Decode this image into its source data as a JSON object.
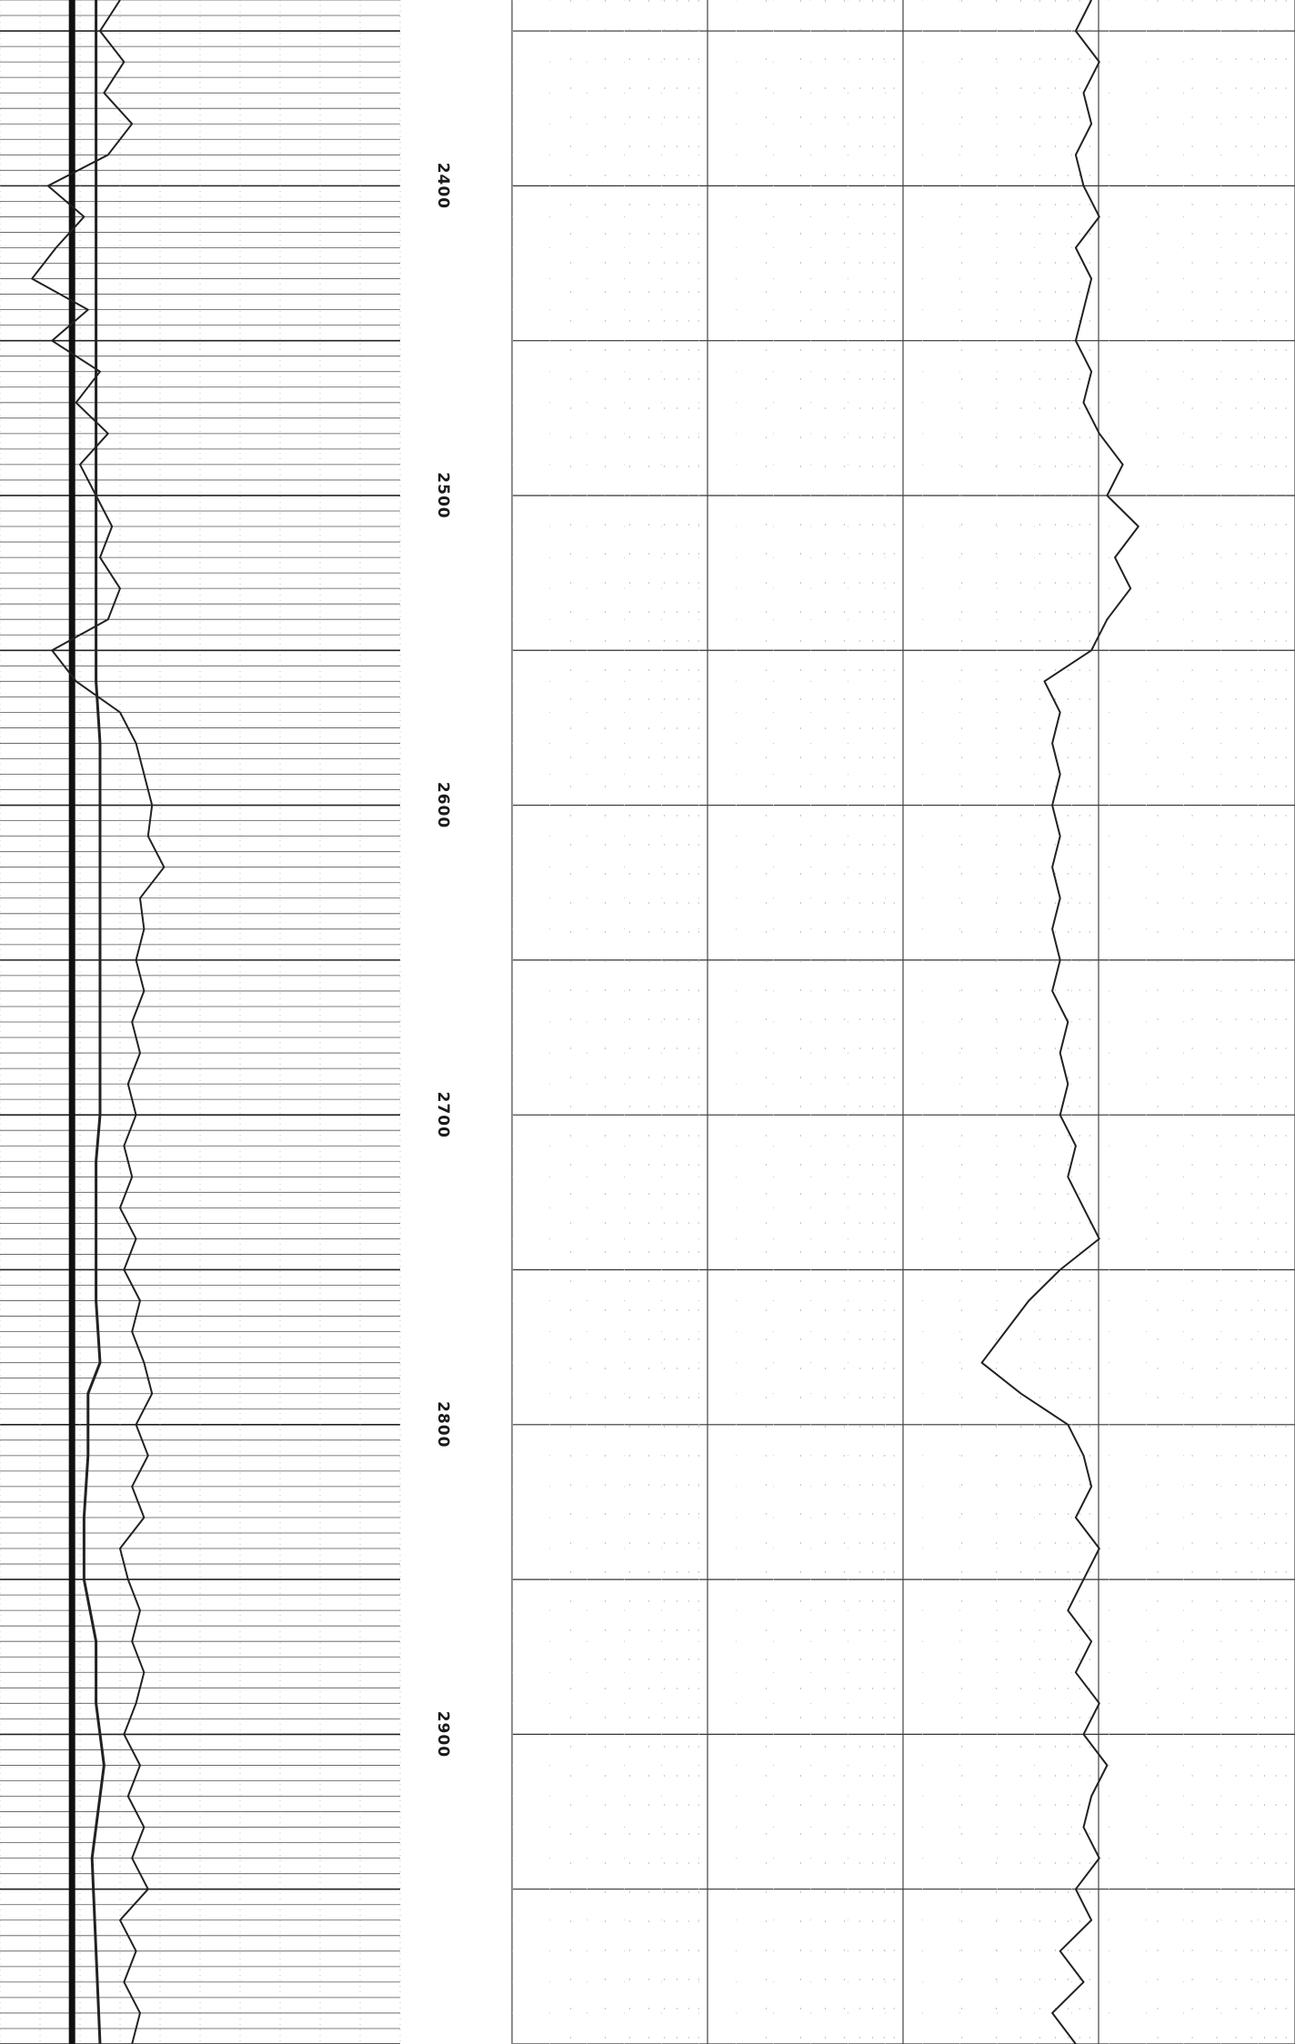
{
  "chart_data": {
    "type": "line",
    "orientation": "rotated",
    "title": "",
    "depth_axis": {
      "label": "",
      "range": [
        2340,
        3000
      ],
      "major_tick_step": 50,
      "labels": [
        "2400",
        "2500",
        "2600",
        "2700",
        "2800",
        "2900"
      ],
      "label_values": [
        2400,
        2500,
        2600,
        2700,
        2800,
        2900
      ]
    },
    "tracks": [
      {
        "name": "",
        "grid": "linear",
        "curves": [
          {
            "name": "",
            "style": "thick",
            "points": [
              [
                2340,
                0.18
              ],
              [
                2360,
                0.18
              ],
              [
                2380,
                0.18
              ],
              [
                2400,
                0.18
              ],
              [
                2420,
                0.18
              ],
              [
                2440,
                0.18
              ],
              [
                2460,
                0.18
              ],
              [
                2480,
                0.18
              ],
              [
                2500,
                0.18
              ],
              [
                2520,
                0.18
              ],
              [
                2540,
                0.18
              ],
              [
                2560,
                0.18
              ],
              [
                2580,
                0.18
              ],
              [
                2600,
                0.18
              ],
              [
                2650,
                0.18
              ],
              [
                2700,
                0.18
              ],
              [
                2750,
                0.18
              ],
              [
                2800,
                0.18
              ],
              [
                2850,
                0.18
              ],
              [
                2900,
                0.18
              ],
              [
                2950,
                0.18
              ],
              [
                3000,
                0.18
              ]
            ]
          },
          {
            "name": "",
            "style": "medium",
            "points": [
              [
                2340,
                0.24
              ],
              [
                2380,
                0.24
              ],
              [
                2420,
                0.24
              ],
              [
                2460,
                0.24
              ],
              [
                2500,
                0.24
              ],
              [
                2540,
                0.24
              ],
              [
                2560,
                0.24
              ],
              [
                2580,
                0.25
              ],
              [
                2620,
                0.25
              ],
              [
                2660,
                0.25
              ],
              [
                2700,
                0.25
              ],
              [
                2715,
                0.24
              ],
              [
                2740,
                0.24
              ],
              [
                2760,
                0.24
              ],
              [
                2780,
                0.25
              ],
              [
                2790,
                0.22
              ],
              [
                2810,
                0.22
              ],
              [
                2830,
                0.21
              ],
              [
                2850,
                0.21
              ],
              [
                2870,
                0.24
              ],
              [
                2890,
                0.24
              ],
              [
                2910,
                0.26
              ],
              [
                2940,
                0.23
              ],
              [
                2970,
                0.24
              ],
              [
                3000,
                0.25
              ]
            ]
          },
          {
            "name": "",
            "style": "thin",
            "points": [
              [
                2340,
                0.3
              ],
              [
                2350,
                0.25
              ],
              [
                2360,
                0.31
              ],
              [
                2370,
                0.26
              ],
              [
                2380,
                0.33
              ],
              [
                2390,
                0.27
              ],
              [
                2400,
                0.12
              ],
              [
                2410,
                0.21
              ],
              [
                2420,
                0.14
              ],
              [
                2430,
                0.08
              ],
              [
                2440,
                0.22
              ],
              [
                2450,
                0.13
              ],
              [
                2460,
                0.25
              ],
              [
                2470,
                0.19
              ],
              [
                2480,
                0.27
              ],
              [
                2490,
                0.2
              ],
              [
                2500,
                0.24
              ],
              [
                2510,
                0.28
              ],
              [
                2520,
                0.25
              ],
              [
                2530,
                0.3
              ],
              [
                2540,
                0.27
              ],
              [
                2550,
                0.13
              ],
              [
                2560,
                0.19
              ],
              [
                2570,
                0.3
              ],
              [
                2580,
                0.34
              ],
              [
                2590,
                0.36
              ],
              [
                2600,
                0.38
              ],
              [
                2610,
                0.37
              ],
              [
                2620,
                0.41
              ],
              [
                2630,
                0.35
              ],
              [
                2640,
                0.36
              ],
              [
                2650,
                0.34
              ],
              [
                2660,
                0.36
              ],
              [
                2670,
                0.33
              ],
              [
                2680,
                0.35
              ],
              [
                2690,
                0.32
              ],
              [
                2700,
                0.34
              ],
              [
                2710,
                0.31
              ],
              [
                2720,
                0.33
              ],
              [
                2730,
                0.3
              ],
              [
                2740,
                0.34
              ],
              [
                2750,
                0.31
              ],
              [
                2760,
                0.35
              ],
              [
                2770,
                0.33
              ],
              [
                2780,
                0.36
              ],
              [
                2790,
                0.38
              ],
              [
                2800,
                0.34
              ],
              [
                2810,
                0.37
              ],
              [
                2820,
                0.33
              ],
              [
                2830,
                0.36
              ],
              [
                2840,
                0.3
              ],
              [
                2850,
                0.32
              ],
              [
                2860,
                0.35
              ],
              [
                2870,
                0.33
              ],
              [
                2880,
                0.36
              ],
              [
                2890,
                0.34
              ],
              [
                2900,
                0.31
              ],
              [
                2910,
                0.35
              ],
              [
                2920,
                0.32
              ],
              [
                2930,
                0.36
              ],
              [
                2940,
                0.33
              ],
              [
                2950,
                0.37
              ],
              [
                2960,
                0.3
              ],
              [
                2970,
                0.34
              ],
              [
                2980,
                0.31
              ],
              [
                2990,
                0.35
              ],
              [
                3000,
                0.33
              ]
            ]
          }
        ]
      },
      {
        "name": "",
        "grid": "logarithmic",
        "curves": [
          {
            "name": "",
            "style": "thin",
            "points": [
              [
                2340,
                0.74
              ],
              [
                2350,
                0.72
              ],
              [
                2360,
                0.75
              ],
              [
                2370,
                0.73
              ],
              [
                2380,
                0.74
              ],
              [
                2390,
                0.72
              ],
              [
                2400,
                0.73
              ],
              [
                2410,
                0.75
              ],
              [
                2420,
                0.72
              ],
              [
                2430,
                0.74
              ],
              [
                2440,
                0.73
              ],
              [
                2450,
                0.72
              ],
              [
                2460,
                0.74
              ],
              [
                2470,
                0.73
              ],
              [
                2480,
                0.75
              ],
              [
                2490,
                0.78
              ],
              [
                2500,
                0.76
              ],
              [
                2510,
                0.8
              ],
              [
                2520,
                0.77
              ],
              [
                2530,
                0.79
              ],
              [
                2540,
                0.76
              ],
              [
                2550,
                0.74
              ],
              [
                2560,
                0.68
              ],
              [
                2570,
                0.7
              ],
              [
                2580,
                0.69
              ],
              [
                2590,
                0.7
              ],
              [
                2600,
                0.69
              ],
              [
                2610,
                0.7
              ],
              [
                2620,
                0.69
              ],
              [
                2630,
                0.7
              ],
              [
                2640,
                0.69
              ],
              [
                2650,
                0.7
              ],
              [
                2660,
                0.69
              ],
              [
                2670,
                0.71
              ],
              [
                2680,
                0.7
              ],
              [
                2690,
                0.71
              ],
              [
                2700,
                0.7
              ],
              [
                2710,
                0.72
              ],
              [
                2720,
                0.71
              ],
              [
                2730,
                0.73
              ],
              [
                2740,
                0.75
              ],
              [
                2750,
                0.7
              ],
              [
                2760,
                0.66
              ],
              [
                2770,
                0.63
              ],
              [
                2780,
                0.6
              ],
              [
                2790,
                0.65
              ],
              [
                2800,
                0.71
              ],
              [
                2810,
                0.73
              ],
              [
                2820,
                0.74
              ],
              [
                2830,
                0.72
              ],
              [
                2840,
                0.75
              ],
              [
                2850,
                0.73
              ],
              [
                2860,
                0.71
              ],
              [
                2870,
                0.74
              ],
              [
                2880,
                0.72
              ],
              [
                2890,
                0.75
              ],
              [
                2900,
                0.73
              ],
              [
                2910,
                0.76
              ],
              [
                2920,
                0.74
              ],
              [
                2930,
                0.73
              ],
              [
                2940,
                0.75
              ],
              [
                2950,
                0.72
              ],
              [
                2960,
                0.74
              ],
              [
                2970,
                0.7
              ],
              [
                2980,
                0.73
              ],
              [
                2990,
                0.69
              ],
              [
                3000,
                0.72
              ]
            ]
          }
        ]
      }
    ],
    "grid": true,
    "legend": "none"
  }
}
